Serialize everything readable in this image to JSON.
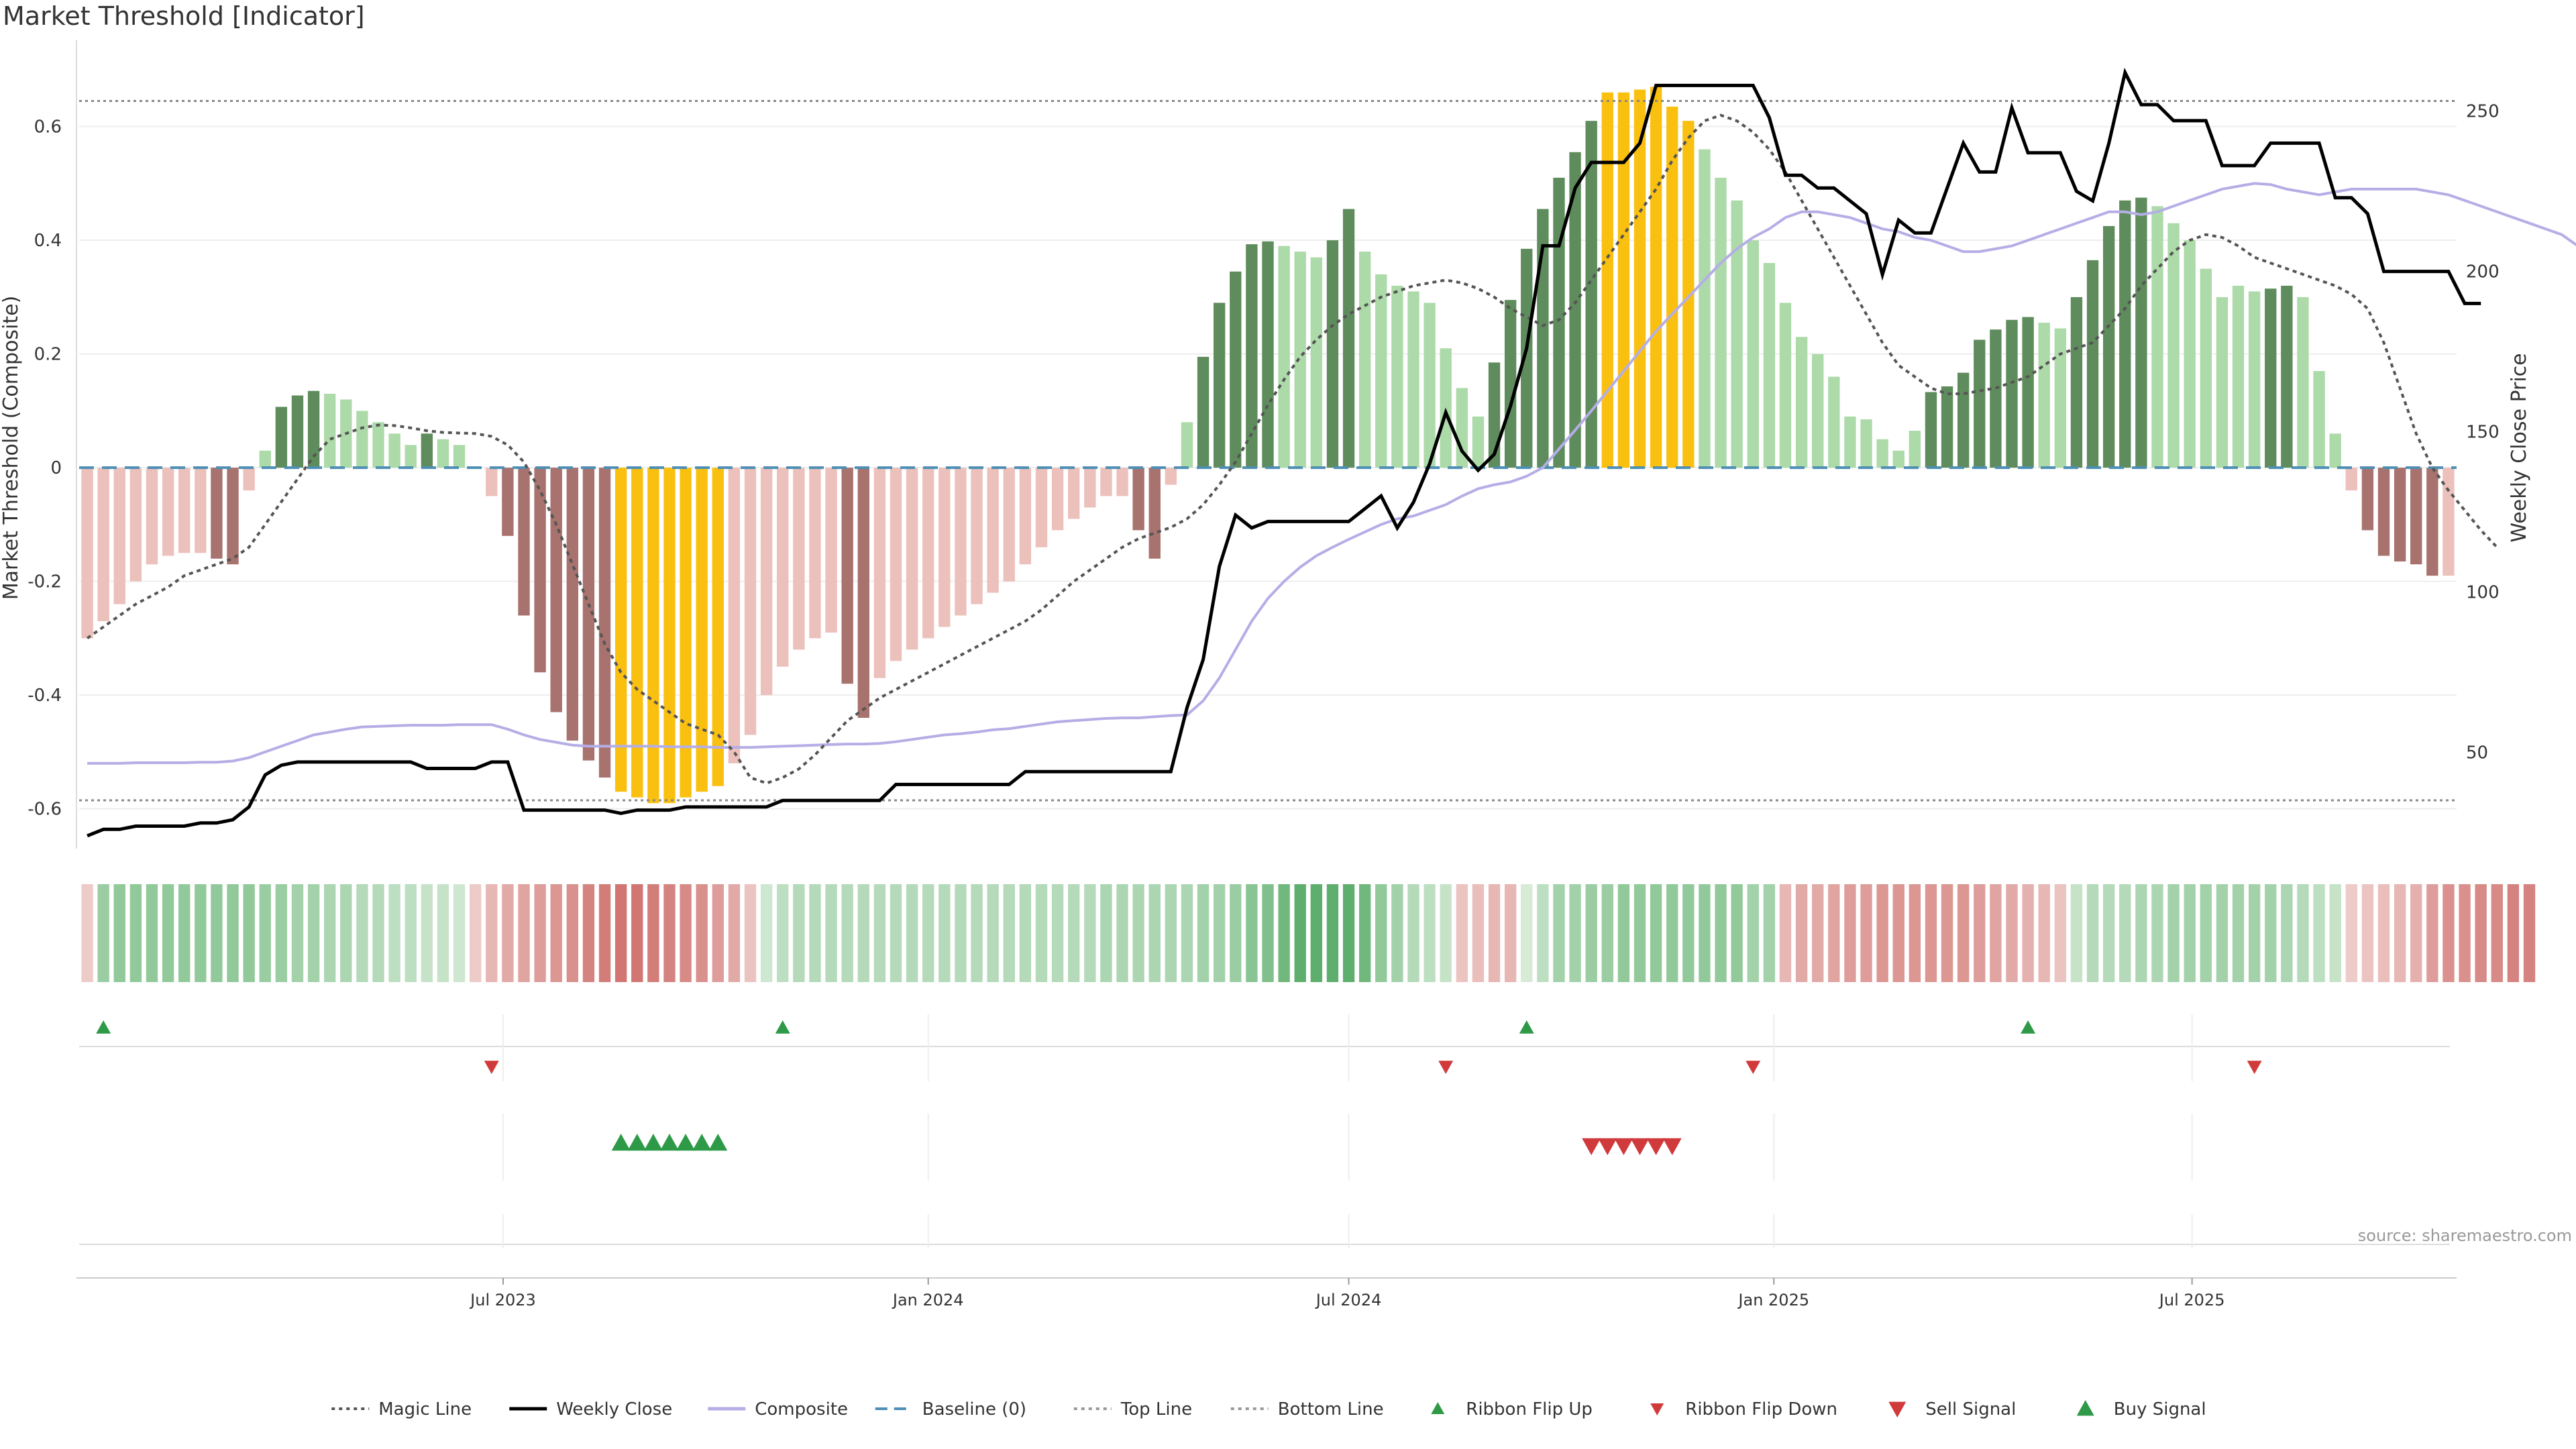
{
  "title": "Market Threshold [Indicator]",
  "source": "source: sharemaestro.com",
  "colors": {
    "bull_dark": "#5f8c5c",
    "bull_light": "#addaa9",
    "bear_dark": "#a8726e",
    "bear_light": "#ecc0bb",
    "extreme": "#fac010",
    "weekly_close": "#000000",
    "magic_line": "#555555",
    "composite": "#b5aee6",
    "baseline": "#4d8fb5",
    "threshold": "#888888",
    "ribbon_up": "#2e9a48",
    "ribbon_down": "#d03a3a"
  },
  "chart_data": {
    "type": "bar",
    "start_date": "2023-01-02",
    "frequency": "weekly",
    "ylabel_left": "Market Threshold (Composite)",
    "ylabel_right": "Weekly Close Price",
    "ylim_left": [
      -0.67,
      0.74
    ],
    "ylim_right": [
      20,
      270
    ],
    "yticks_left": [
      -0.6,
      -0.4,
      -0.2,
      0,
      0.2,
      0.4,
      0.6
    ],
    "yticks_right": [
      50,
      100,
      150,
      200,
      250
    ],
    "xticks": [
      {
        "label": "Jul 2023",
        "date": "2023-07-01"
      },
      {
        "label": "Jan 2024",
        "date": "2024-01-01"
      },
      {
        "label": "Jul 2024",
        "date": "2024-07-01"
      },
      {
        "label": "Jan 2025",
        "date": "2025-01-01"
      },
      {
        "label": "Jul 2025",
        "date": "2025-07-01"
      }
    ],
    "top_line": 0.645,
    "bottom_line": -0.585,
    "baseline": 0,
    "series": [
      {
        "name": "Composite",
        "values": [
          -0.3,
          -0.27,
          -0.24,
          -0.2,
          -0.17,
          -0.155,
          -0.15,
          -0.15,
          -0.16,
          -0.17,
          -0.04,
          0.03,
          0.107,
          0.127,
          0.135,
          0.13,
          0.12,
          0.1,
          0.08,
          0.06,
          0.04,
          0.06,
          0.05,
          0.04,
          0.0,
          -0.05,
          -0.12,
          -0.26,
          -0.36,
          -0.43,
          -0.48,
          -0.515,
          -0.545,
          -0.57,
          -0.58,
          -0.59,
          -0.59,
          -0.58,
          -0.57,
          -0.56,
          -0.52,
          -0.47,
          -0.4,
          -0.35,
          -0.32,
          -0.3,
          -0.29,
          -0.38,
          -0.44,
          -0.37,
          -0.34,
          -0.32,
          -0.3,
          -0.28,
          -0.26,
          -0.24,
          -0.22,
          -0.2,
          -0.17,
          -0.14,
          -0.11,
          -0.09,
          -0.07,
          -0.05,
          -0.05,
          -0.11,
          -0.16,
          -0.03,
          0.08,
          0.195,
          0.29,
          0.345,
          0.393,
          0.398,
          0.39,
          0.38,
          0.37,
          0.4,
          0.455,
          0.38,
          0.34,
          0.32,
          0.31,
          0.29,
          0.21,
          0.14,
          0.09,
          0.185,
          0.295,
          0.385,
          0.455,
          0.51,
          0.555,
          0.61,
          0.66,
          0.66,
          0.665,
          0.67,
          0.635,
          0.61,
          0.56,
          0.51,
          0.47,
          0.4,
          0.36,
          0.29,
          0.23,
          0.2,
          0.16,
          0.09,
          0.085,
          0.05,
          0.03,
          0.065,
          0.133,
          0.143,
          0.167,
          0.225,
          0.243,
          0.26,
          0.265,
          0.255,
          0.245,
          0.3,
          0.365,
          0.425,
          0.47,
          0.475,
          0.46,
          0.43,
          0.4,
          0.35,
          0.3,
          0.32,
          0.31,
          0.315,
          0.32,
          0.3,
          0.17,
          0.06,
          -0.04,
          -0.11,
          -0.155,
          -0.165,
          -0.17,
          -0.19,
          -0.19
        ]
      },
      {
        "name": "Weekly Close",
        "values": [
          24,
          26,
          26,
          27,
          27,
          27,
          27,
          28,
          28,
          29,
          33,
          43,
          46,
          47,
          47,
          47,
          47,
          47,
          47,
          47,
          47,
          45,
          45,
          45,
          45,
          47,
          47,
          32,
          32,
          32,
          32,
          32,
          32,
          31,
          32,
          32,
          32,
          33,
          33,
          33,
          33,
          33,
          33,
          35,
          35,
          35,
          35,
          35,
          35,
          35,
          40,
          40,
          40,
          40,
          40,
          40,
          40,
          40,
          44,
          44,
          44,
          44,
          44,
          44,
          44,
          44,
          44,
          44,
          64,
          79,
          108,
          124,
          120,
          122,
          122,
          122,
          122,
          122,
          122,
          126,
          130,
          120,
          128,
          140,
          156,
          144,
          138,
          143,
          158,
          176,
          208,
          208,
          226,
          234,
          234,
          234,
          240,
          258,
          258,
          258,
          258,
          258,
          258,
          258,
          248,
          230,
          230,
          226,
          226,
          222,
          218,
          199,
          216,
          212,
          212,
          226,
          240,
          231,
          231,
          251,
          237,
          237,
          237,
          225,
          222,
          240,
          262,
          252,
          252,
          247,
          247,
          247,
          233,
          233,
          233,
          240,
          240,
          240,
          240,
          223,
          223,
          218,
          200,
          200,
          200,
          200,
          200,
          190,
          190
        ]
      },
      {
        "name": "Composite",
        "values": [
          -0.52,
          -0.52,
          -0.52,
          -0.519,
          -0.519,
          -0.519,
          -0.519,
          -0.518,
          -0.518,
          -0.516,
          -0.51,
          -0.5,
          -0.49,
          -0.48,
          -0.47,
          -0.465,
          -0.46,
          -0.456,
          -0.455,
          -0.454,
          -0.453,
          -0.453,
          -0.453,
          -0.452,
          -0.452,
          -0.452,
          -0.46,
          -0.47,
          -0.478,
          -0.483,
          -0.488,
          -0.49,
          -0.49,
          -0.49,
          -0.49,
          -0.49,
          -0.491,
          -0.491,
          -0.491,
          -0.492,
          -0.492,
          -0.492,
          -0.491,
          -0.49,
          -0.489,
          -0.488,
          -0.487,
          -0.486,
          -0.486,
          -0.485,
          -0.482,
          -0.478,
          -0.474,
          -0.47,
          -0.468,
          -0.465,
          -0.461,
          -0.459,
          -0.455,
          -0.451,
          -0.447,
          -0.445,
          -0.443,
          -0.441,
          -0.44,
          -0.44,
          -0.438,
          -0.436,
          -0.435,
          -0.41,
          -0.37,
          -0.32,
          -0.27,
          -0.23,
          -0.2,
          -0.175,
          -0.155,
          -0.14,
          -0.126,
          -0.113,
          -0.1,
          -0.09,
          -0.085,
          -0.075,
          -0.065,
          -0.05,
          -0.037,
          -0.03,
          -0.025,
          -0.015,
          0.0,
          0.033,
          0.066,
          0.1,
          0.135,
          0.17,
          0.205,
          0.24,
          0.27,
          0.3,
          0.33,
          0.36,
          0.385,
          0.405,
          0.42,
          0.44,
          0.45,
          0.45,
          0.445,
          0.44,
          0.43,
          0.42,
          0.415,
          0.405,
          0.4,
          0.39,
          0.38,
          0.38,
          0.385,
          0.39,
          0.4,
          0.41,
          0.42,
          0.43,
          0.44,
          0.45,
          0.45,
          0.445,
          0.45,
          0.46,
          0.47,
          0.48,
          0.49,
          0.495,
          0.5,
          0.498,
          0.49,
          0.485,
          0.48,
          0.485,
          0.49,
          0.49,
          0.49,
          0.49,
          0.49,
          0.485,
          0.48,
          0.47,
          0.46,
          0.45,
          0.44,
          0.43,
          0.42,
          0.41,
          0.39
        ]
      },
      {
        "name": "Magic Line",
        "values": [
          -0.3,
          -0.28,
          -0.26,
          -0.24,
          -0.225,
          -0.21,
          -0.19,
          -0.18,
          -0.17,
          -0.16,
          -0.14,
          -0.1,
          -0.06,
          -0.02,
          0.02,
          0.05,
          0.06,
          0.07,
          0.075,
          0.074,
          0.07,
          0.065,
          0.062,
          0.061,
          0.06,
          0.055,
          0.04,
          0.01,
          -0.04,
          -0.1,
          -0.17,
          -0.24,
          -0.31,
          -0.36,
          -0.39,
          -0.41,
          -0.43,
          -0.45,
          -0.46,
          -0.47,
          -0.5,
          -0.545,
          -0.555,
          -0.545,
          -0.53,
          -0.505,
          -0.475,
          -0.445,
          -0.425,
          -0.405,
          -0.39,
          -0.375,
          -0.36,
          -0.345,
          -0.33,
          -0.315,
          -0.3,
          -0.285,
          -0.27,
          -0.25,
          -0.225,
          -0.2,
          -0.18,
          -0.16,
          -0.14,
          -0.125,
          -0.115,
          -0.105,
          -0.09,
          -0.065,
          -0.03,
          0.01,
          0.06,
          0.11,
          0.155,
          0.195,
          0.225,
          0.25,
          0.27,
          0.285,
          0.3,
          0.31,
          0.32,
          0.325,
          0.33,
          0.325,
          0.315,
          0.3,
          0.28,
          0.265,
          0.25,
          0.26,
          0.29,
          0.33,
          0.37,
          0.41,
          0.45,
          0.49,
          0.54,
          0.58,
          0.61,
          0.62,
          0.61,
          0.59,
          0.56,
          0.52,
          0.47,
          0.42,
          0.37,
          0.32,
          0.27,
          0.22,
          0.18,
          0.16,
          0.14,
          0.13,
          0.13,
          0.135,
          0.14,
          0.15,
          0.16,
          0.18,
          0.2,
          0.21,
          0.22,
          0.25,
          0.28,
          0.32,
          0.35,
          0.38,
          0.4,
          0.41,
          0.405,
          0.39,
          0.37,
          0.36,
          0.35,
          0.34,
          0.33,
          0.32,
          0.305,
          0.28,
          0.22,
          0.14,
          0.06,
          0.0,
          -0.04,
          -0.075,
          -0.11,
          -0.14
        ]
      }
    ],
    "bar_styles": [
      "bear_light",
      "bear_light",
      "bear_light",
      "bear_light",
      "bear_light",
      "bear_light",
      "bear_light",
      "bear_light",
      "bear_dark",
      "bear_dark",
      "bear_light",
      "bull_light",
      "bull_dark",
      "bull_dark",
      "bull_dark",
      "bull_light",
      "bull_light",
      "bull_light",
      "bull_light",
      "bull_light",
      "bull_light",
      "bull_dark",
      "bull_light",
      "bull_light",
      "bear_light",
      "bear_light",
      "bear_dark",
      "bear_dark",
      "bear_dark",
      "bear_dark",
      "bear_dark",
      "bear_dark",
      "bear_dark",
      "extreme",
      "extreme",
      "extreme",
      "extreme",
      "extreme",
      "extreme",
      "extreme",
      "bear_light",
      "bear_light",
      "bear_light",
      "bear_light",
      "bear_light",
      "bear_light",
      "bear_light",
      "bear_dark",
      "bear_dark",
      "bear_light",
      "bear_light",
      "bear_light",
      "bear_light",
      "bear_light",
      "bear_light",
      "bear_light",
      "bear_light",
      "bear_light",
      "bear_light",
      "bear_light",
      "bear_light",
      "bear_light",
      "bear_light",
      "bear_light",
      "bear_light",
      "bear_dark",
      "bear_dark",
      "bear_light",
      "bull_light",
      "bull_dark",
      "bull_dark",
      "bull_dark",
      "bull_dark",
      "bull_dark",
      "bull_light",
      "bull_light",
      "bull_light",
      "bull_dark",
      "bull_dark",
      "bull_light",
      "bull_light",
      "bull_light",
      "bull_light",
      "bull_light",
      "bull_light",
      "bull_light",
      "bull_light",
      "bull_dark",
      "bull_dark",
      "bull_dark",
      "bull_dark",
      "bull_dark",
      "bull_dark",
      "bull_dark",
      "extreme",
      "extreme",
      "extreme",
      "extreme",
      "extreme",
      "extreme",
      "bull_light",
      "bull_light",
      "bull_light",
      "bull_light",
      "bull_light",
      "bull_light",
      "bull_light",
      "bull_light",
      "bull_light",
      "bull_light",
      "bull_light",
      "bull_light",
      "bull_light",
      "bull_light",
      "bull_dark",
      "bull_dark",
      "bull_dark",
      "bull_dark",
      "bull_dark",
      "bull_dark",
      "bull_dark",
      "bull_light",
      "bull_light",
      "bull_dark",
      "bull_dark",
      "bull_dark",
      "bull_dark",
      "bull_dark",
      "bull_light",
      "bull_light",
      "bull_light",
      "bull_light",
      "bull_light",
      "bull_light",
      "bull_light",
      "bull_dark",
      "bull_dark",
      "bull_light",
      "bull_light",
      "bull_light",
      "bear_light",
      "bear_dark",
      "bear_dark",
      "bear_dark",
      "bear_dark",
      "bear_dark",
      "bear_light"
    ],
    "ribbon": [
      -0.15,
      0.45,
      0.5,
      0.5,
      0.5,
      0.5,
      0.5,
      0.5,
      0.5,
      0.5,
      0.5,
      0.45,
      0.45,
      0.4,
      0.4,
      0.35,
      0.35,
      0.3,
      0.3,
      0.25,
      0.25,
      0.2,
      0.2,
      0.15,
      -0.15,
      -0.3,
      -0.4,
      -0.45,
      -0.5,
      -0.55,
      -0.6,
      -0.7,
      -0.75,
      -0.8,
      -0.8,
      -0.75,
      -0.7,
      -0.65,
      -0.6,
      -0.5,
      -0.4,
      -0.2,
      0.15,
      0.25,
      0.3,
      0.3,
      0.3,
      0.3,
      0.3,
      0.3,
      0.3,
      0.3,
      0.3,
      0.3,
      0.3,
      0.3,
      0.3,
      0.3,
      0.3,
      0.3,
      0.3,
      0.3,
      0.3,
      0.35,
      0.35,
      0.35,
      0.35,
      0.35,
      0.35,
      0.4,
      0.4,
      0.45,
      0.55,
      0.6,
      0.7,
      0.8,
      0.8,
      0.8,
      0.8,
      0.7,
      0.5,
      0.4,
      0.3,
      0.25,
      0.2,
      -0.2,
      -0.25,
      -0.3,
      -0.3,
      0.1,
      0.25,
      0.4,
      0.4,
      0.45,
      0.45,
      0.5,
      0.5,
      0.5,
      0.5,
      0.5,
      0.5,
      0.5,
      0.5,
      0.4,
      0.4,
      -0.3,
      -0.4,
      -0.4,
      -0.45,
      -0.5,
      -0.5,
      -0.55,
      -0.55,
      -0.55,
      -0.55,
      -0.55,
      -0.55,
      -0.5,
      -0.45,
      -0.4,
      -0.35,
      -0.3,
      -0.2,
      0.2,
      0.3,
      0.3,
      0.3,
      0.35,
      0.35,
      0.4,
      0.4,
      0.4,
      0.4,
      0.4,
      0.4,
      0.4,
      0.35,
      0.3,
      0.25,
      0.2,
      -0.15,
      -0.2,
      -0.25,
      -0.3,
      -0.35,
      -0.5,
      -0.6,
      -0.6,
      -0.65,
      -0.65,
      -0.7,
      -0.7
    ],
    "ribbon_flip_up": [
      1,
      43,
      89,
      120
    ],
    "ribbon_flip_down": [
      25,
      84,
      103,
      134
    ],
    "buy_signal": [
      33,
      34,
      35,
      36,
      37,
      38,
      39
    ],
    "sell_signal": [
      93,
      94,
      95,
      96,
      97,
      98
    ]
  },
  "legend": [
    {
      "label": "Magic Line",
      "kind": "dotted",
      "color": "#555555"
    },
    {
      "label": "Weekly Close",
      "kind": "solid",
      "color": "#000000"
    },
    {
      "label": "Composite",
      "kind": "solid",
      "color": "#b5aee6"
    },
    {
      "label": "Baseline (0)",
      "kind": "dashed",
      "color": "#4d8fb5"
    },
    {
      "label": "Top Line",
      "kind": "dotted",
      "color": "#999999"
    },
    {
      "label": "Bottom Line",
      "kind": "dotted",
      "color": "#999999"
    },
    {
      "label": "Ribbon Flip Up",
      "kind": "tri-up-small",
      "color": "#2e9a48"
    },
    {
      "label": "Ribbon Flip Down",
      "kind": "tri-down-small",
      "color": "#d03a3a"
    },
    {
      "label": "Sell Signal",
      "kind": "tri-down",
      "color": "#d03a3a"
    },
    {
      "label": "Buy Signal",
      "kind": "tri-up",
      "color": "#2e9a48"
    }
  ]
}
